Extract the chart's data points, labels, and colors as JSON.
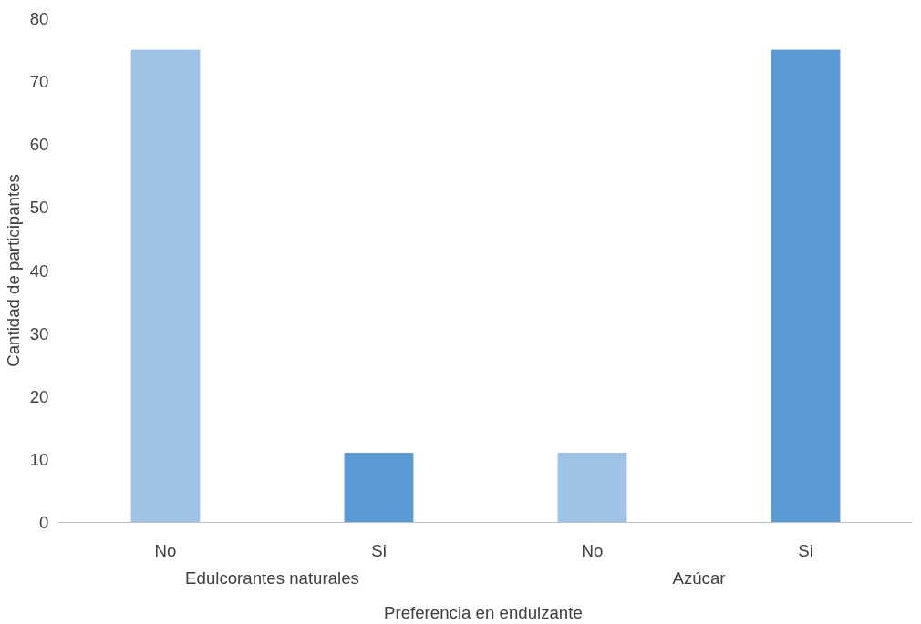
{
  "chart_data": {
    "type": "bar",
    "xlabel": "Preferencia en  endulzante",
    "ylabel": "Cantidad de participantes",
    "categories": [
      "No",
      "Si",
      "No",
      "Si"
    ],
    "values": [
      75,
      11,
      11,
      75
    ],
    "colors": [
      "#9fc3e7",
      "#5b9bd5",
      "#9fc3e7",
      "#5b9bd5"
    ],
    "ylim": [
      0,
      80
    ],
    "yticks": [
      0,
      10,
      20,
      30,
      40,
      50,
      60,
      70,
      80
    ],
    "grid": false,
    "annotations": [
      "Edulcorantes naturales",
      "Azúcar"
    ]
  }
}
